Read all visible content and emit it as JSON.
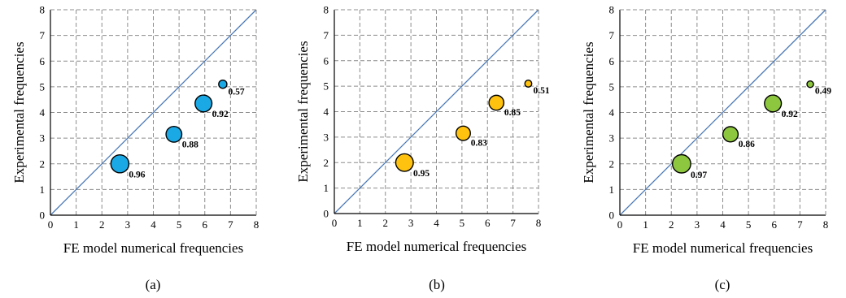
{
  "chart_data": [
    {
      "type": "scatter",
      "caption": "(a)",
      "xlabel": "FE model numerical frequencies",
      "ylabel": "Experimental frequencies",
      "xlim": [
        0,
        8
      ],
      "ylim": [
        0,
        8
      ],
      "ticks": [
        "0",
        "1",
        "2",
        "3",
        "4",
        "5",
        "6",
        "7",
        "8"
      ],
      "grid": true,
      "reference_line": "y = x",
      "marker_color": "#1ba9e6",
      "line_color": "#4a78b5",
      "points": [
        {
          "x": 2.7,
          "y": 2.0,
          "value": 0.96,
          "label": "0.96"
        },
        {
          "x": 4.8,
          "y": 3.15,
          "value": 0.88,
          "label": "0.88"
        },
        {
          "x": 5.95,
          "y": 4.35,
          "value": 0.92,
          "label": "0.92"
        },
        {
          "x": 6.7,
          "y": 5.1,
          "value": 0.57,
          "label": "0.57"
        }
      ]
    },
    {
      "type": "scatter",
      "caption": "(b)",
      "xlabel": "FE model numerical frequencies",
      "ylabel": "Experimental frequencies",
      "xlim": [
        0,
        8
      ],
      "ylim": [
        0,
        8
      ],
      "ticks": [
        "0",
        "1",
        "2",
        "3",
        "4",
        "5",
        "6",
        "7",
        "8"
      ],
      "grid": true,
      "reference_line": "y = x",
      "marker_color": "#ffc20e",
      "line_color": "#4a78b5",
      "points": [
        {
          "x": 2.75,
          "y": 2.0,
          "value": 0.95,
          "label": "0.95"
        },
        {
          "x": 5.05,
          "y": 3.15,
          "value": 0.83,
          "label": "0.83"
        },
        {
          "x": 6.35,
          "y": 4.35,
          "value": 0.85,
          "label": "0.85"
        },
        {
          "x": 7.6,
          "y": 5.1,
          "value": 0.51,
          "label": "0.51"
        }
      ]
    },
    {
      "type": "scatter",
      "caption": "(c)",
      "xlabel": "FE model numerical frequencies",
      "ylabel": "Experimental frequencies",
      "xlim": [
        0,
        8
      ],
      "ylim": [
        0,
        8
      ],
      "ticks": [
        "0",
        "1",
        "2",
        "3",
        "4",
        "5",
        "6",
        "7",
        "8"
      ],
      "grid": true,
      "reference_line": "y = x",
      "marker_color": "#8dc63f",
      "line_color": "#4a78b5",
      "points": [
        {
          "x": 2.4,
          "y": 2.0,
          "value": 0.97,
          "label": "0.97"
        },
        {
          "x": 4.3,
          "y": 3.15,
          "value": 0.86,
          "label": "0.86"
        },
        {
          "x": 5.95,
          "y": 4.35,
          "value": 0.92,
          "label": "0.92"
        },
        {
          "x": 7.4,
          "y": 5.1,
          "value": 0.49,
          "label": "0.49"
        }
      ]
    }
  ]
}
